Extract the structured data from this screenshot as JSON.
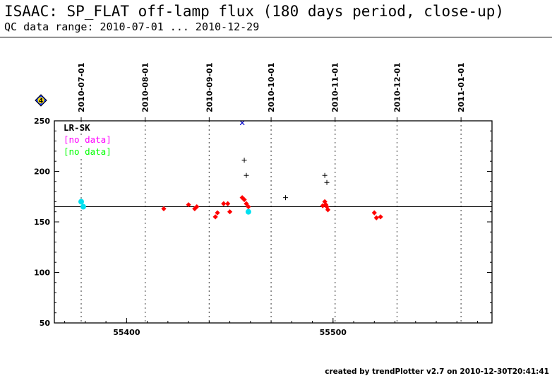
{
  "header": {
    "title": "ISAAC: SP_FLAT off-lamp flux (180 days period, close-up)",
    "subtitle": "QC data range: 2010-07-01 ... 2010-12-29"
  },
  "footer": "created by trendPlotter v2.7 on 2010-12-30T20:41:41",
  "chart_data": {
    "type": "scatter",
    "xlim": [
      55365,
      55577
    ],
    "ylim": [
      50,
      250
    ],
    "x_ticks": [
      55400,
      55500
    ],
    "y_ticks": [
      50,
      100,
      150,
      200,
      250
    ],
    "date_ticks": [
      {
        "label": "2010-07-01",
        "x": 55378
      },
      {
        "label": "2010-08-01",
        "x": 55409
      },
      {
        "label": "2010-09-01",
        "x": 55440
      },
      {
        "label": "2010-10-01",
        "x": 55470
      },
      {
        "label": "2010-11-01",
        "x": 55501
      },
      {
        "label": "2010-12-01",
        "x": 55531
      },
      {
        "label": "2011-01-01",
        "x": 55562
      }
    ],
    "reference_line": 165,
    "badge": "4",
    "legend": [
      {
        "label": "LR-SK",
        "color": "#000000"
      },
      {
        "label": "[no data]",
        "color": "#ff00ff"
      },
      {
        "label": "[no data]",
        "color": "#00ff00"
      }
    ],
    "series": [
      {
        "marker": "diamond",
        "color": "#ff0000",
        "points": [
          [
            55418,
            163
          ],
          [
            55430,
            167
          ],
          [
            55433,
            163
          ],
          [
            55434,
            165
          ],
          [
            55443,
            155
          ],
          [
            55444,
            159
          ],
          [
            55447,
            168
          ],
          [
            55449,
            168
          ],
          [
            55450,
            160
          ],
          [
            55456,
            174
          ],
          [
            55457,
            172
          ],
          [
            55458,
            168
          ],
          [
            55459,
            165
          ],
          [
            55495,
            166
          ],
          [
            55496,
            170
          ],
          [
            55496.5,
            167
          ],
          [
            55497,
            165
          ],
          [
            55497.5,
            162
          ],
          [
            55520,
            159
          ],
          [
            55521,
            154
          ],
          [
            55523,
            155
          ]
        ]
      },
      {
        "marker": "circle",
        "color": "#00e0f0",
        "points": [
          [
            55378,
            170
          ],
          [
            55379,
            165
          ],
          [
            55459,
            160
          ]
        ]
      },
      {
        "marker": "plus",
        "color": "#000000",
        "points": [
          [
            55457,
            211
          ],
          [
            55458,
            196
          ],
          [
            55477,
            174
          ],
          [
            55496,
            196
          ],
          [
            55497,
            189
          ]
        ]
      },
      {
        "marker": "x",
        "color": "#0000cc",
        "points": [
          [
            55456,
            248
          ]
        ]
      }
    ]
  }
}
